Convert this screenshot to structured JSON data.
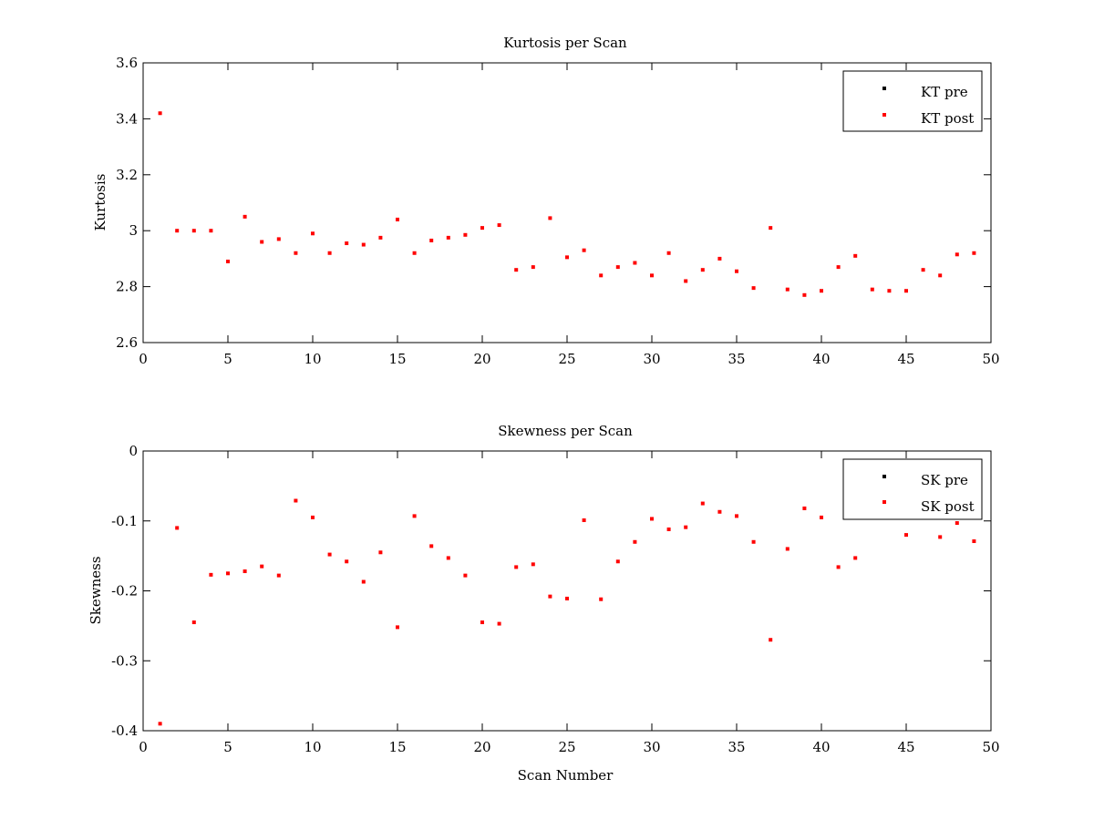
{
  "chart_data": [
    {
      "type": "scatter",
      "title": "Kurtosis per Scan",
      "xlabel": "",
      "ylabel": "Kurtosis",
      "xlim": [
        0,
        50
      ],
      "ylim": [
        2.6,
        3.6
      ],
      "xticks": [
        "0",
        "5",
        "10",
        "15",
        "20",
        "25",
        "30",
        "35",
        "40",
        "45",
        "50"
      ],
      "yticks": [
        "2.6",
        "2.8",
        "3",
        "3.2",
        "3.4",
        "3.6"
      ],
      "grid": false,
      "legend_position": "top-right",
      "series": [
        {
          "name": "KT pre",
          "color": "#000000",
          "x": [],
          "y": []
        },
        {
          "name": "KT post",
          "color": "#ff0000",
          "x": [
            1,
            2,
            3,
            4,
            5,
            6,
            7,
            8,
            9,
            10,
            11,
            12,
            13,
            14,
            15,
            16,
            17,
            18,
            19,
            20,
            21,
            22,
            23,
            24,
            25,
            26,
            27,
            28,
            29,
            30,
            31,
            32,
            33,
            34,
            35,
            36,
            37,
            38,
            39,
            40,
            41,
            42,
            43,
            44,
            45,
            46,
            47,
            48,
            49
          ],
          "y": [
            3.42,
            3.0,
            3.0,
            3.0,
            2.89,
            3.05,
            2.96,
            2.97,
            2.92,
            2.99,
            2.92,
            2.955,
            2.95,
            2.975,
            3.04,
            2.92,
            2.965,
            2.975,
            2.985,
            3.01,
            3.02,
            2.86,
            2.87,
            3.045,
            2.905,
            2.93,
            2.84,
            2.87,
            2.885,
            2.84,
            2.92,
            2.82,
            2.86,
            2.9,
            2.855,
            2.795,
            3.01,
            2.79,
            2.77,
            2.785,
            2.87,
            2.91,
            2.79,
            2.785,
            2.785,
            2.86,
            2.84,
            2.915,
            2.92
          ]
        }
      ]
    },
    {
      "type": "scatter",
      "title": "Skewness per Scan",
      "xlabel": "Scan Number",
      "ylabel": "Skewness",
      "xlim": [
        0,
        50
      ],
      "ylim": [
        -0.4,
        0
      ],
      "xticks": [
        "0",
        "5",
        "10",
        "15",
        "20",
        "25",
        "30",
        "35",
        "40",
        "45",
        "50"
      ],
      "yticks": [
        "-0.4",
        "-0.3",
        "-0.2",
        "-0.1",
        "0"
      ],
      "grid": false,
      "legend_position": "top-right",
      "series": [
        {
          "name": "SK pre",
          "color": "#000000",
          "x": [],
          "y": []
        },
        {
          "name": "SK post",
          "color": "#ff0000",
          "x": [
            1,
            2,
            3,
            4,
            5,
            6,
            7,
            8,
            9,
            10,
            11,
            12,
            13,
            14,
            15,
            16,
            17,
            18,
            19,
            20,
            21,
            22,
            23,
            24,
            25,
            26,
            27,
            28,
            29,
            30,
            31,
            32,
            33,
            34,
            35,
            36,
            37,
            38,
            39,
            40,
            41,
            42,
            45,
            47,
            48,
            49
          ],
          "y": [
            -0.39,
            -0.11,
            -0.245,
            -0.177,
            -0.175,
            -0.172,
            -0.165,
            -0.178,
            -0.071,
            -0.095,
            -0.148,
            -0.158,
            -0.187,
            -0.145,
            -0.252,
            -0.093,
            -0.136,
            -0.153,
            -0.178,
            -0.245,
            -0.247,
            -0.166,
            -0.162,
            -0.208,
            -0.211,
            -0.099,
            -0.212,
            -0.158,
            -0.13,
            -0.097,
            -0.112,
            -0.109,
            -0.075,
            -0.087,
            -0.093,
            -0.13,
            -0.27,
            -0.14,
            -0.082,
            -0.095,
            -0.166,
            -0.153,
            -0.12,
            -0.123,
            -0.103,
            -0.129
          ]
        }
      ]
    }
  ]
}
